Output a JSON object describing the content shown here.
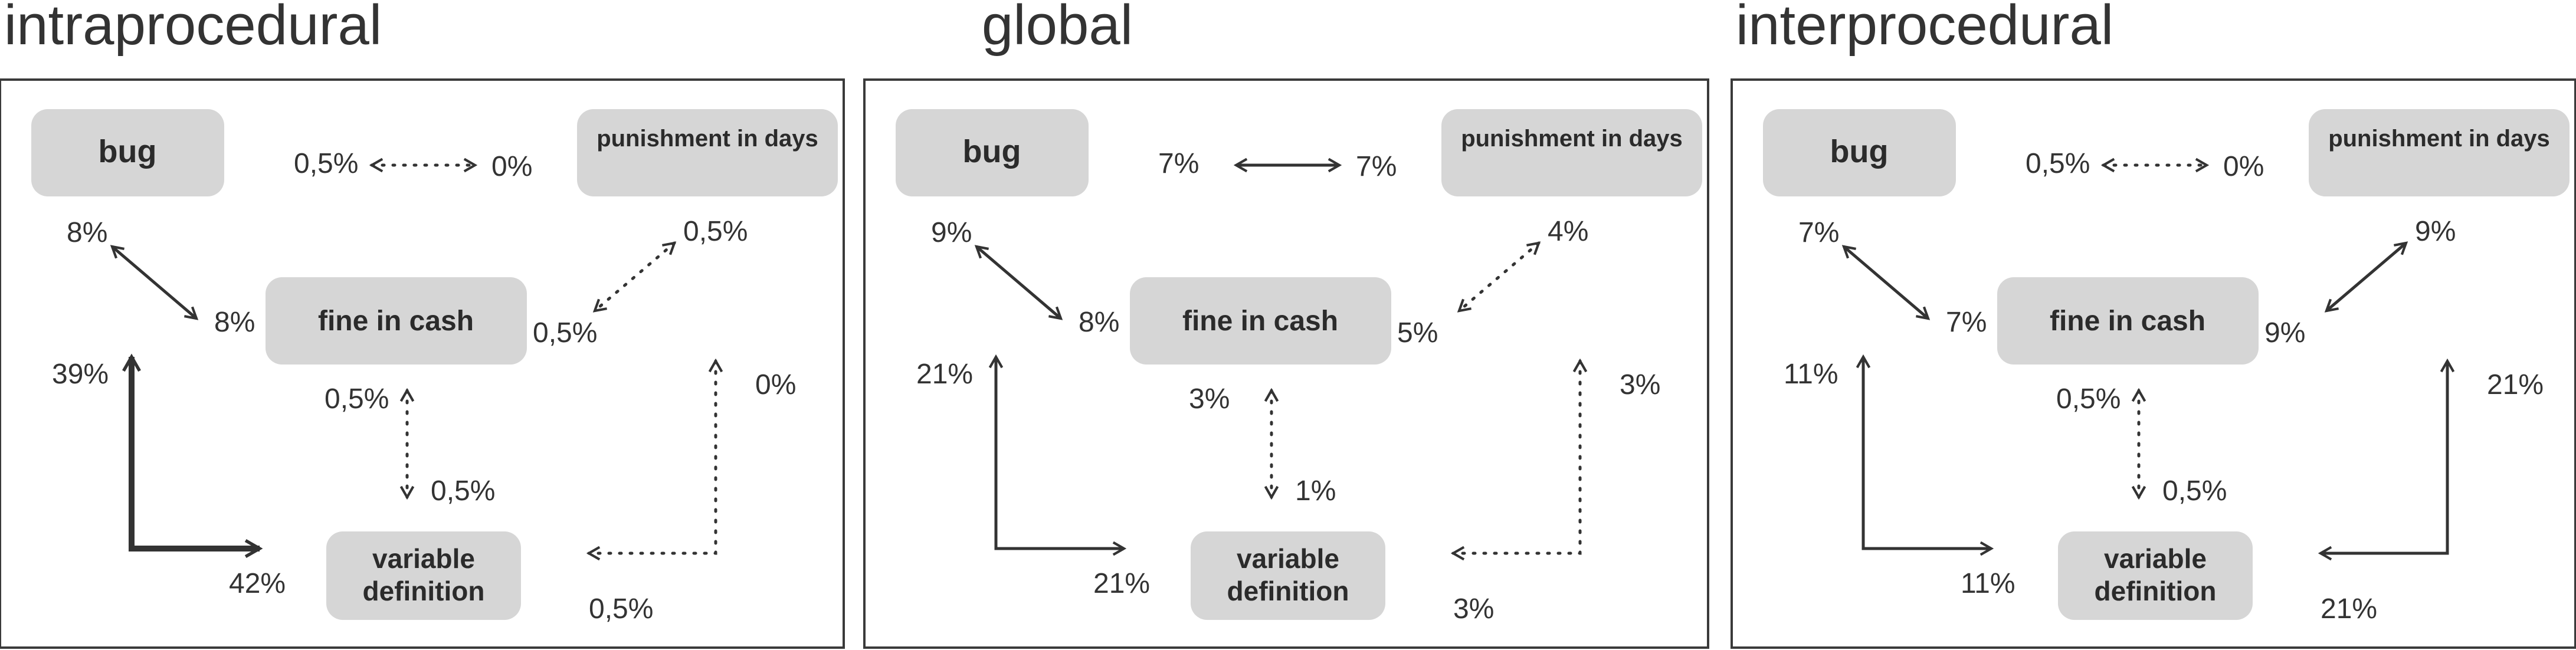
{
  "colors": {
    "node_fill": "#d6d6d6",
    "stroke": "#333333",
    "text": "#333333"
  },
  "nodes": {
    "bug": "bug",
    "punishment": "punishment in days",
    "fine": "fine in cash",
    "variable_line1": "variable",
    "variable_line2": "definition"
  },
  "panels": [
    {
      "id": "intraprocedural",
      "title": "intraprocedural",
      "bug_punishment": {
        "left": "0,5%",
        "right": "0%",
        "style": "dotted"
      },
      "bug_fine": {
        "bug_end": "8%",
        "fine_end": "8%",
        "style": "solid"
      },
      "punishment_fine": {
        "punishment_end": "0,5%",
        "fine_end": "0,5%",
        "style": "dotted"
      },
      "fine_variable": {
        "fine_end": "0,5%",
        "variable_end": "0,5%",
        "style": "dotted"
      },
      "bug_variable": {
        "up": "39%",
        "right": "42%",
        "style": "bold"
      },
      "punishment_variable": {
        "up": "0%",
        "left": "0,5%",
        "style": "dotted"
      }
    },
    {
      "id": "global",
      "title": "global",
      "bug_punishment": {
        "left": "7%",
        "right": "7%",
        "style": "solid"
      },
      "bug_fine": {
        "bug_end": "9%",
        "fine_end": "8%",
        "style": "solid"
      },
      "punishment_fine": {
        "punishment_end": "4%",
        "fine_end": "5%",
        "style": "dotted"
      },
      "fine_variable": {
        "fine_end": "3%",
        "variable_end": "1%",
        "style": "dotted"
      },
      "bug_variable": {
        "up": "21%",
        "right": "21%",
        "style": "solid"
      },
      "punishment_variable": {
        "up": "3%",
        "left": "3%",
        "style": "dotted"
      }
    },
    {
      "id": "interprocedural",
      "title": "interprocedural",
      "bug_punishment": {
        "left": "0,5%",
        "right": "0%",
        "style": "dotted"
      },
      "bug_fine": {
        "bug_end": "7%",
        "fine_end": "7%",
        "style": "solid"
      },
      "punishment_fine": {
        "punishment_end": "9%",
        "fine_end": "9%",
        "style": "solid"
      },
      "fine_variable": {
        "fine_end": "0,5%",
        "variable_end": "0,5%",
        "style": "dotted"
      },
      "bug_variable": {
        "up": "11%",
        "right": "11%",
        "style": "solid"
      },
      "punishment_variable": {
        "up": "21%",
        "left": "21%",
        "style": "solid"
      }
    }
  ]
}
